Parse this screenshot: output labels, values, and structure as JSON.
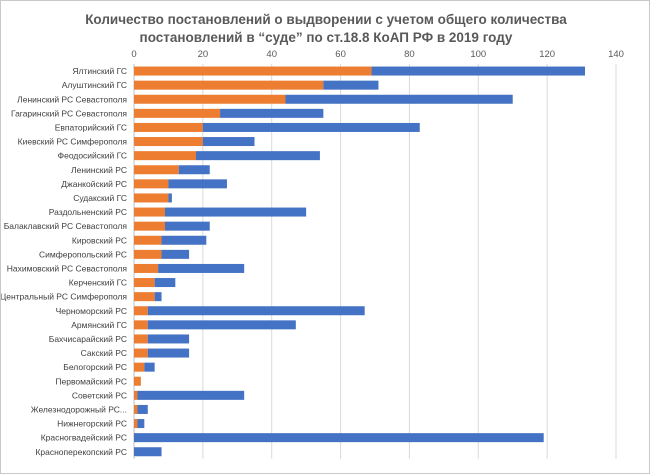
{
  "chart_data": {
    "type": "bar",
    "orientation": "horizontal",
    "stacked": true,
    "title_lines": [
      "Количество постановлений о выдворении с учетом общего количества",
      "постановлений в “суде” по ст.18.8 КоАП РФ в 2019 году"
    ],
    "xlim": [
      0,
      140
    ],
    "xticks": [
      0,
      20,
      40,
      60,
      80,
      100,
      120,
      140
    ],
    "x_axis_position": "top",
    "grid": true,
    "legend": "none",
    "categories": [
      "Ялтинский ГС",
      "Алуштинский ГС",
      "Ленинский РС Севастополя",
      "Гагаринский РС Севастополя",
      "Евпаторийский ГС",
      "Киевский РС Симферополя",
      "Феодосийский ГС",
      "Ленинский РС",
      "Джанкойский РС",
      "Судакский ГС",
      "Раздольненский РС",
      "Балаклавский РС Севастополя",
      "Кировский РС",
      "Симферопольский РС",
      "Нахимовский РС Севастополя",
      "Керченский ГС",
      "Центральный РС Симферополя",
      "Черноморский РС",
      "Армянский ГС",
      "Бахчисарайский РС",
      "Сакский РС",
      "Белогорский РС",
      "Первомайский РС",
      "Советский РС",
      "Железнодорожный РС...",
      "Нижнегорский РС",
      "Красногвадейский РС",
      "Красноперекопский РС"
    ],
    "series": [
      {
        "color": "#ed7d31",
        "values": [
          69,
          55,
          44,
          25,
          20,
          20,
          18,
          13,
          10,
          10,
          9,
          9,
          8,
          8,
          7,
          6,
          6,
          4,
          4,
          4,
          4,
          3,
          2,
          1,
          1,
          1,
          0,
          0
        ]
      },
      {
        "color": "#4472c4",
        "values": [
          62,
          16,
          66,
          30,
          63,
          15,
          36,
          9,
          17,
          1,
          41,
          13,
          13,
          8,
          25,
          6,
          2,
          63,
          43,
          12,
          12,
          3,
          0,
          31,
          3,
          2,
          119,
          8
        ]
      }
    ]
  }
}
